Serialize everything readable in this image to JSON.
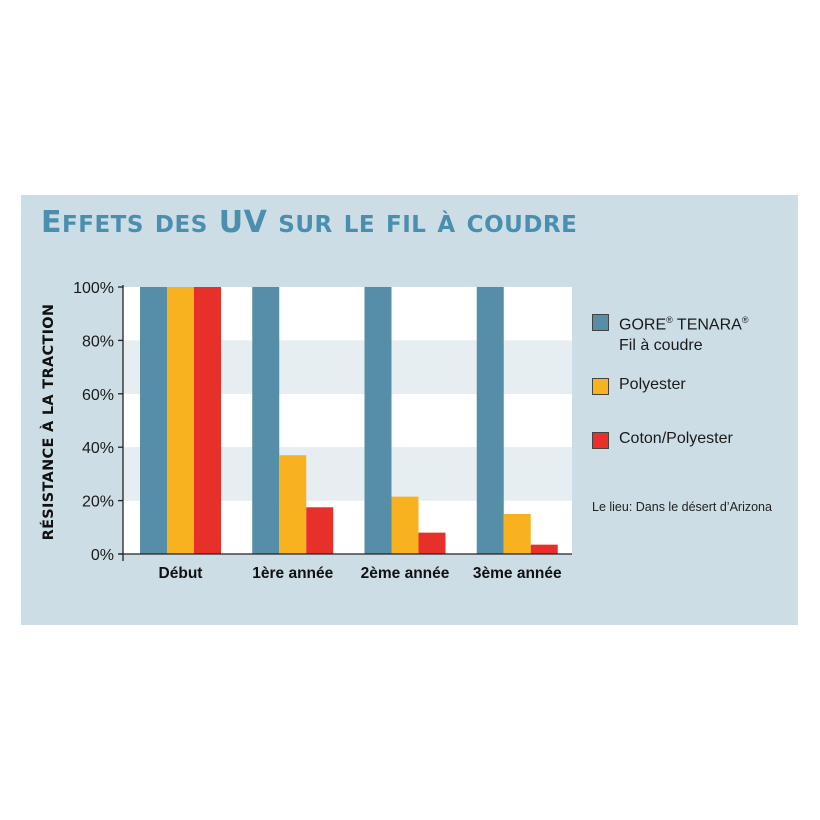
{
  "title": "Effets des UV sur le fil à coudre",
  "chart_data": {
    "type": "bar",
    "title": "Effets des UV sur le fil à coudre",
    "xlabel": "",
    "ylabel": "Résistance à la traction",
    "categories": [
      "Début",
      "1ère année",
      "2ème année",
      "3ème année"
    ],
    "y_ticks": [
      "0%",
      "20%",
      "40%",
      "60%",
      "80%",
      "100%"
    ],
    "ylim": [
      0,
      100
    ],
    "grid": "alternating horizontal bands",
    "legend_position": "right",
    "series": [
      {
        "name": "GORE® TENARA® Fil à coudre",
        "color": "#558ea6",
        "values": [
          100,
          100,
          100,
          100
        ]
      },
      {
        "name": "Polyester",
        "color": "#f9b21f",
        "values": [
          100,
          37,
          21.5,
          15
        ]
      },
      {
        "name": "Coton/Polyester",
        "color": "#e8302b",
        "values": [
          100,
          17.5,
          8,
          3.5
        ]
      }
    ],
    "annotation": "Le lieu: Dans le désert d’Arizona"
  },
  "colors": {
    "panel_background": "#ccdde6",
    "title_color": "#4a8fae",
    "plot_band_light": "#ffffff",
    "plot_band_dark": "#e6eef2"
  }
}
